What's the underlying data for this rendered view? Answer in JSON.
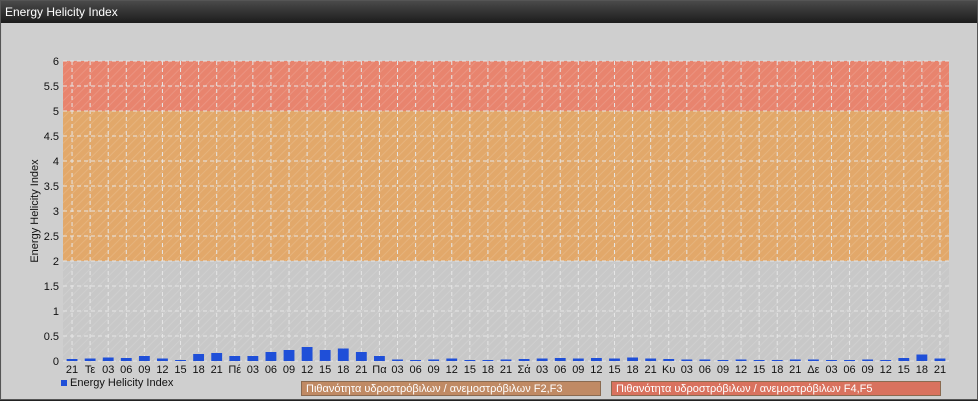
{
  "window": {
    "title": "Energy Helicity Index"
  },
  "colors": {
    "bar": "#1f4fd8",
    "zone_low": "#c8c8c8",
    "zone_mid": "#e2a86a",
    "zone_high": "#e8846e",
    "zone_mid_box": "#c08a64",
    "zone_high_box": "#d9725e"
  },
  "legend": {
    "series_label": "Energy Helicity Index",
    "zone_mid_label": "Πιθανότητα υδροστρόβιλων / ανεμοστρόβιλων F2,F3",
    "zone_high_label": "Πιθανότητα υδροστρόβιλων / ανεμοστρόβιλων F4,F5"
  },
  "chart_data": {
    "type": "bar",
    "title": "",
    "xlabel": "",
    "ylabel": "Energy Helicity Index",
    "ylim": [
      0,
      6
    ],
    "yticks": [
      "0",
      "0.5",
      "1",
      "1.5",
      "2",
      "2.5",
      "3",
      "3.5",
      "4",
      "4.5",
      "5",
      "5.5",
      "6"
    ],
    "grid": true,
    "bands": [
      {
        "from": 0,
        "to": 2,
        "label": ""
      },
      {
        "from": 2,
        "to": 5,
        "label": "Πιθανότητα υδροστρόβιλων / ανεμοστρόβιλων F2,F3"
      },
      {
        "from": 5,
        "to": 6,
        "label": "Πιθανότητα υδροστρόβιλων / ανεμοστρόβιλων F4,F5"
      }
    ],
    "categories": [
      "21",
      "Τε",
      "03",
      "06",
      "09",
      "12",
      "15",
      "18",
      "21",
      "Πέ",
      "03",
      "06",
      "09",
      "12",
      "15",
      "18",
      "21",
      "Πα",
      "03",
      "06",
      "09",
      "12",
      "15",
      "18",
      "21",
      "Σά",
      "03",
      "06",
      "09",
      "12",
      "15",
      "18",
      "21",
      "Κυ",
      "03",
      "06",
      "09",
      "12",
      "15",
      "18",
      "21",
      "Δε",
      "03",
      "06",
      "09",
      "12",
      "15",
      "18",
      "21"
    ],
    "series": [
      {
        "name": "Energy Helicity Index",
        "values": [
          0.04,
          0.05,
          0.07,
          0.06,
          0.1,
          0.05,
          0.02,
          0.14,
          0.16,
          0.1,
          0.1,
          0.18,
          0.22,
          0.28,
          0.22,
          0.25,
          0.18,
          0.1,
          0.03,
          0.02,
          0.03,
          0.05,
          0.02,
          0.02,
          0.03,
          0.04,
          0.05,
          0.06,
          0.05,
          0.06,
          0.05,
          0.07,
          0.05,
          0.04,
          0.03,
          0.03,
          0.02,
          0.03,
          0.02,
          0.02,
          0.03,
          0.03,
          0.02,
          0.02,
          0.03,
          0.02,
          0.06,
          0.13,
          0.05
        ]
      }
    ]
  }
}
